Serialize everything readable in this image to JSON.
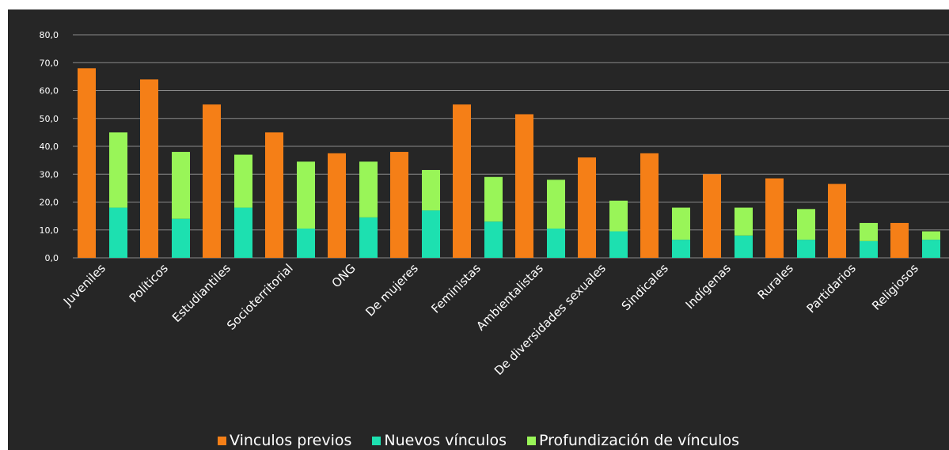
{
  "chart_data": {
    "type": "bar",
    "title": "",
    "xlabel": "",
    "ylabel": "",
    "ylim": [
      0,
      80
    ],
    "yticks": [
      "0,0",
      "10,0",
      "20,0",
      "30,0",
      "40,0",
      "50,0",
      "60,0",
      "70,0",
      "80,0"
    ],
    "grid": true,
    "legend_position": "bottom",
    "colors": {
      "vinculos_previos": "#f57f17",
      "nuevos_vinculos": "#1de0b0",
      "profundizacion": "#99f558",
      "background": "#262626",
      "gridline": "#8a8a8a",
      "text": "#ffffff"
    },
    "categories": [
      "Juveniles",
      "Políticos",
      "Estudiantiles",
      "Socioterritorial",
      "ONG",
      "De mujeres",
      "Feministas",
      "Ambientalistas",
      "De diversidades sexuales",
      "Sindicales",
      "Indígenas",
      "Rurales",
      "Partidarios",
      "Religiosos"
    ],
    "series": [
      {
        "name": "Vinculos previos",
        "values": [
          68.0,
          64.0,
          55.0,
          45.0,
          37.5,
          38.0,
          55.0,
          51.5,
          36.0,
          37.5,
          30.0,
          28.5,
          26.5,
          12.5
        ]
      },
      {
        "name": "Nuevos vínculos",
        "values": [
          18.0,
          14.0,
          18.0,
          10.5,
          14.5,
          17.0,
          13.0,
          10.5,
          9.5,
          6.5,
          8.0,
          6.5,
          6.0,
          6.5
        ]
      },
      {
        "name": "Profundización de vínculos",
        "values": [
          27.0,
          24.0,
          19.0,
          24.0,
          20.0,
          14.5,
          16.0,
          17.5,
          11.0,
          11.5,
          10.0,
          11.0,
          6.5,
          3.0
        ]
      }
    ]
  }
}
